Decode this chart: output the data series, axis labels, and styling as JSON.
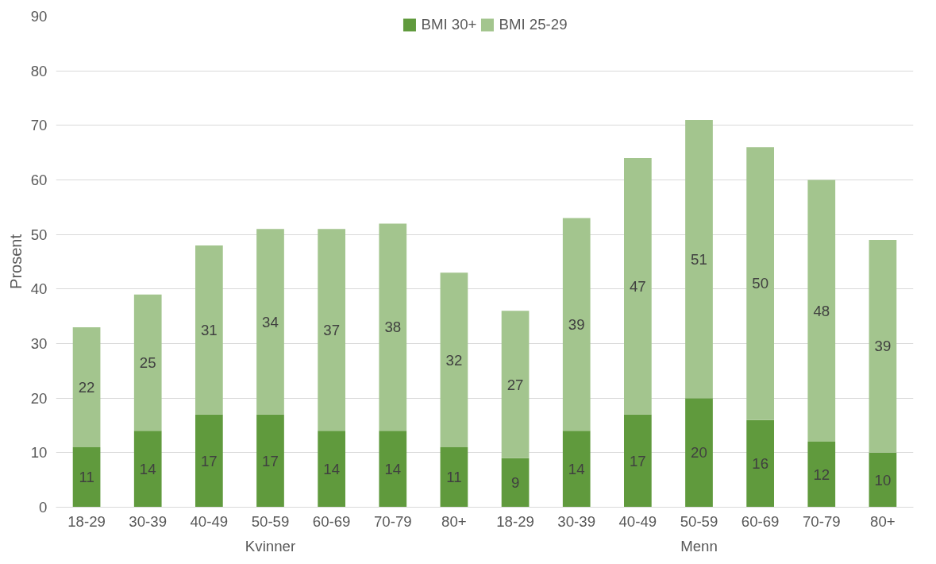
{
  "chart_data": {
    "type": "bar",
    "stacked": true,
    "ylabel": "Prosent",
    "categories": [
      "18-29",
      "30-39",
      "40-49",
      "50-59",
      "60-69",
      "70-79",
      "80+",
      "18-29",
      "30-39",
      "40-49",
      "50-59",
      "60-69",
      "70-79",
      "80+"
    ],
    "annotations": [
      "Kvinner",
      "Menn"
    ],
    "series": [
      {
        "name": "BMI 30+",
        "color": "#609a3d",
        "values": [
          11,
          14,
          17,
          17,
          14,
          14,
          11,
          9,
          14,
          17,
          20,
          16,
          12,
          10
        ]
      },
      {
        "name": "BMI 25-29",
        "color": "#a3c58e",
        "values": [
          22,
          25,
          31,
          34,
          37,
          38,
          32,
          27,
          39,
          47,
          51,
          50,
          48,
          39
        ]
      }
    ],
    "ylim": [
      0,
      90
    ],
    "yticks": [
      0,
      10,
      20,
      30,
      40,
      50,
      60,
      70,
      80,
      90
    ],
    "grid": "y",
    "legend": "top",
    "data_labels": true
  }
}
